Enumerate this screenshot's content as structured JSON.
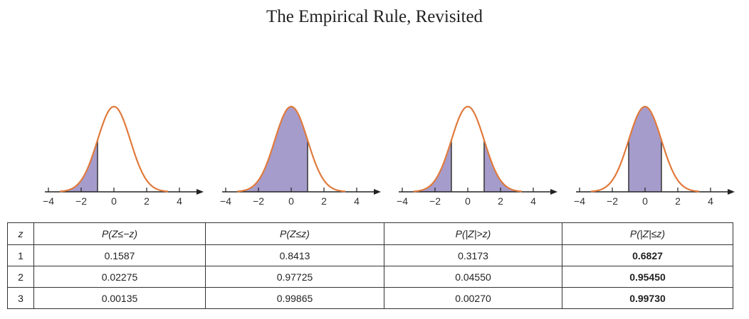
{
  "title": "The Empirical Rule, Revisited",
  "colors": {
    "curve": "#e07a3c",
    "fill": "#a59ccc",
    "axis": "#222222",
    "line": "#333333"
  },
  "panels": [
    {
      "shade": "left-tail",
      "bounds": [
        -1
      ]
    },
    {
      "shade": "below",
      "bounds": [
        1
      ]
    },
    {
      "shade": "two-tails",
      "bounds": [
        -1,
        1
      ]
    },
    {
      "shade": "center",
      "bounds": [
        -1,
        1
      ]
    }
  ],
  "x_ticks": [
    "−4",
    "−2",
    "0",
    "2",
    "4"
  ],
  "table": {
    "headers": [
      "z",
      "P(Z≤−z)",
      "P(Z≤z)",
      "P(|Z|>z)",
      "P(|Z|≤z)"
    ],
    "rows": [
      [
        "1",
        "0.1587",
        "0.8413",
        "0.3173",
        "0.6827"
      ],
      [
        "2",
        "0.02275",
        "0.97725",
        "0.04550",
        "0.95450"
      ],
      [
        "3",
        "0.00135",
        "0.99865",
        "0.00270",
        "0.99730"
      ]
    ]
  }
}
